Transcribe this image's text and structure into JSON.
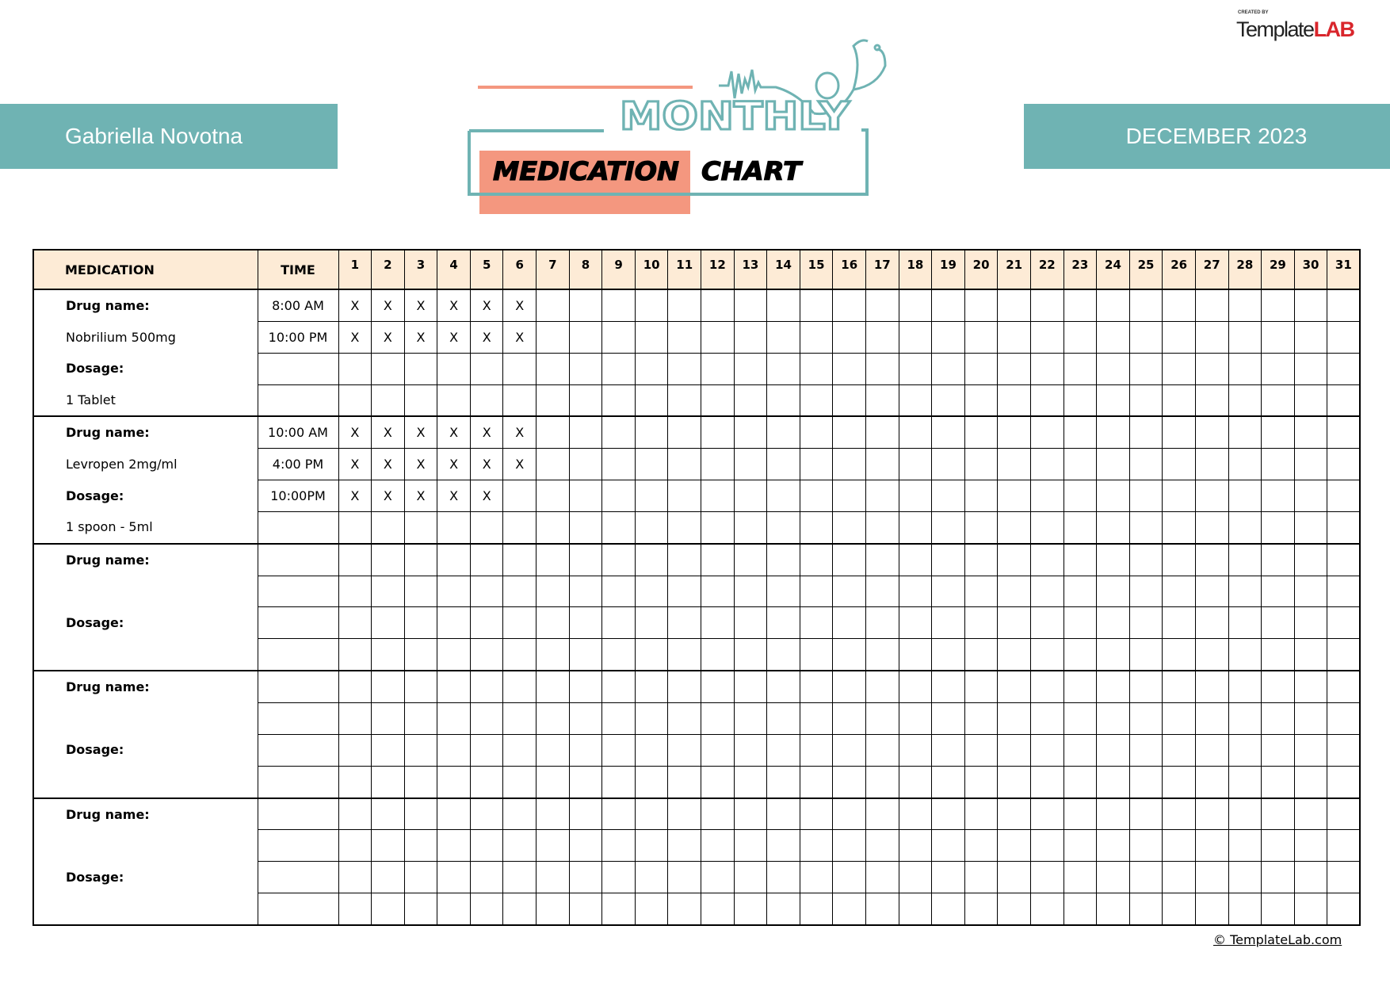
{
  "patient_name": "Gabriella Novotna",
  "month": "DECEMBER 2023",
  "logo": {
    "created_by": "CREATED BY",
    "template": "Template",
    "lab": "LAB"
  },
  "title": {
    "line1": "MONTHLY",
    "line2a": "MEDICATION",
    "line2b": "CHART"
  },
  "colors": {
    "teal": "#6fb3b3",
    "salmon": "#f4977f",
    "header_bg": "#fdebd6"
  },
  "table": {
    "headers": {
      "medication": "MEDICATION",
      "time": "TIME"
    },
    "days": [
      "1",
      "2",
      "3",
      "4",
      "5",
      "6",
      "7",
      "8",
      "9",
      "10",
      "11",
      "12",
      "13",
      "14",
      "15",
      "16",
      "17",
      "18",
      "19",
      "20",
      "21",
      "22",
      "23",
      "24",
      "25",
      "26",
      "27",
      "28",
      "29",
      "30",
      "31"
    ],
    "mark_symbol": "X",
    "groups": [
      {
        "drug_label": "Drug name:",
        "drug_name": "Nobrilium 500mg",
        "dosage_label": "Dosage:",
        "dosage": "1 Tablet",
        "rows": [
          {
            "time": "8:00 AM",
            "marked_days": [
              1,
              2,
              3,
              4,
              5,
              6
            ]
          },
          {
            "time": "10:00 PM",
            "marked_days": [
              1,
              2,
              3,
              4,
              5,
              6
            ]
          },
          {
            "time": "",
            "marked_days": []
          },
          {
            "time": "",
            "marked_days": []
          }
        ]
      },
      {
        "drug_label": "Drug name:",
        "drug_name": "Levropen 2mg/ml",
        "dosage_label": "Dosage:",
        "dosage": "1 spoon - 5ml",
        "rows": [
          {
            "time": "10:00 AM",
            "marked_days": [
              1,
              2,
              3,
              4,
              5,
              6
            ]
          },
          {
            "time": "4:00 PM",
            "marked_days": [
              1,
              2,
              3,
              4,
              5,
              6
            ]
          },
          {
            "time": "10:00PM",
            "marked_days": [
              1,
              2,
              3,
              4,
              5
            ]
          },
          {
            "time": "",
            "marked_days": []
          }
        ]
      },
      {
        "drug_label": "Drug name:",
        "drug_name": "",
        "dosage_label": "Dosage:",
        "dosage": "",
        "rows": [
          {
            "time": "",
            "marked_days": []
          },
          {
            "time": "",
            "marked_days": []
          },
          {
            "time": "",
            "marked_days": []
          },
          {
            "time": "",
            "marked_days": []
          }
        ]
      },
      {
        "drug_label": "Drug name:",
        "drug_name": "",
        "dosage_label": "Dosage:",
        "dosage": "",
        "rows": [
          {
            "time": "",
            "marked_days": []
          },
          {
            "time": "",
            "marked_days": []
          },
          {
            "time": "",
            "marked_days": []
          },
          {
            "time": "",
            "marked_days": []
          }
        ]
      },
      {
        "drug_label": "Drug name:",
        "drug_name": "",
        "dosage_label": "Dosage:",
        "dosage": "",
        "rows": [
          {
            "time": "",
            "marked_days": []
          },
          {
            "time": "",
            "marked_days": []
          },
          {
            "time": "",
            "marked_days": []
          },
          {
            "time": "",
            "marked_days": []
          }
        ]
      }
    ]
  },
  "footer": "© TemplateLab.com"
}
